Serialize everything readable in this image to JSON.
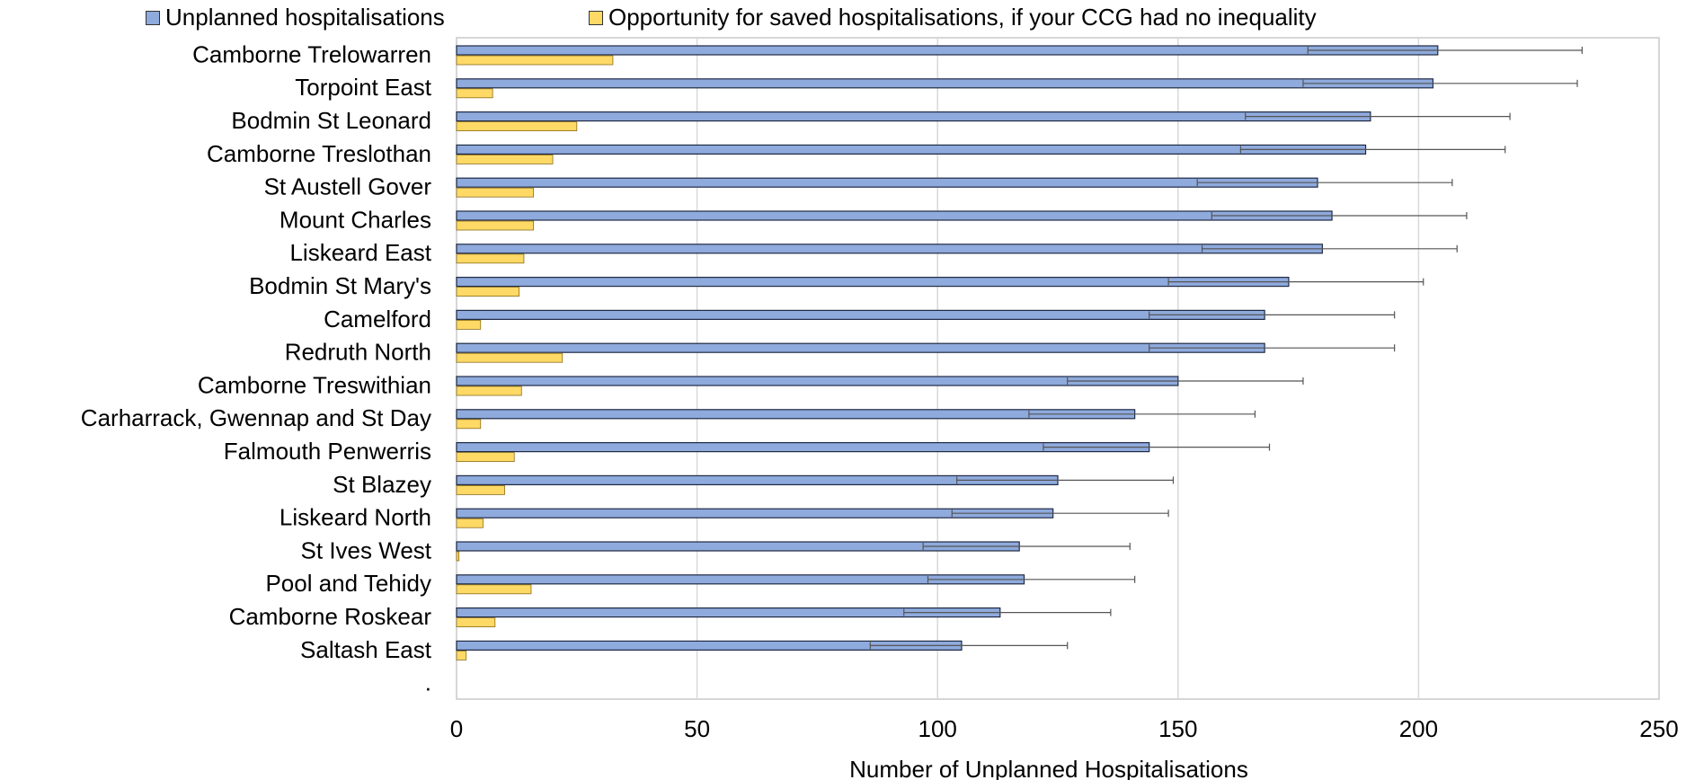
{
  "chart_data": {
    "type": "bar",
    "orientation": "horizontal",
    "title": "",
    "xlabel": "Number of Unplanned Hospitalisations",
    "ylabel": "",
    "xlim": [
      0,
      250
    ],
    "xticks": [
      0,
      50,
      100,
      150,
      200,
      250
    ],
    "grid": "vertical",
    "legend_position": "top",
    "categories": [
      "Camborne Trelowarren",
      "Torpoint East",
      "Bodmin St Leonard",
      "Camborne Treslothan",
      "St Austell Gover",
      "Mount Charles",
      "Liskeard East",
      "Bodmin St Mary's",
      "Camelford",
      "Redruth North",
      "Camborne Treswithian",
      "Carharrack, Gwennap and St Day",
      "Falmouth Penwerris",
      "St Blazey",
      "Liskeard North",
      "St Ives West",
      "Pool and Tehidy",
      "Camborne Roskear",
      "Saltash East",
      "."
    ],
    "series": [
      {
        "name": "Unplanned hospitalisations",
        "color": "#8FAADC",
        "values": [
          204,
          203,
          190,
          189,
          179,
          182,
          180,
          173,
          168,
          168,
          150,
          141,
          144,
          125,
          124,
          117,
          118,
          113,
          105,
          null
        ],
        "error_low": [
          177,
          176,
          164,
          163,
          154,
          157,
          155,
          148,
          144,
          144,
          127,
          119,
          122,
          104,
          103,
          97,
          98,
          93,
          86,
          null
        ],
        "error_high": [
          234,
          233,
          219,
          218,
          207,
          210,
          208,
          201,
          195,
          195,
          176,
          166,
          169,
          149,
          148,
          140,
          141,
          136,
          127,
          null
        ]
      },
      {
        "name": "Opportunity for saved hospitalisations, if your CCG had no inequality",
        "color": "#FFD966",
        "values": [
          32.5,
          7.5,
          25,
          20,
          16,
          16,
          14,
          13,
          5,
          22,
          13.5,
          5,
          12,
          10,
          5.5,
          0.5,
          15.5,
          8,
          2,
          null
        ]
      }
    ]
  }
}
